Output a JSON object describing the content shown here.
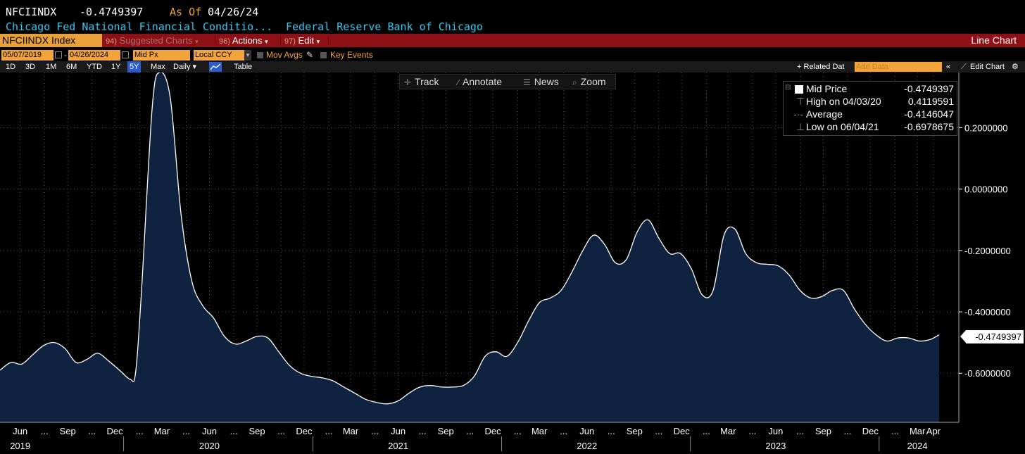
{
  "header": {
    "ticker": "NFCIINDX",
    "value": "-0.4749397",
    "as_of_label": "As Of",
    "as_of_date": "04/26/24",
    "long_name": "Chicago Fed National Financial Conditio...",
    "source": "Federal Reserve Bank of Chicago"
  },
  "redbar": {
    "ticker_tab": "NFCIINDX Index",
    "suggested_num": "94)",
    "suggested": "Suggested Charts",
    "actions_num": "96)",
    "actions": "Actions",
    "edit_num": "97)",
    "edit": "Edit",
    "chart_type": "Line Chart"
  },
  "controls": {
    "start_date": "05/07/2019",
    "end_date": "04/26/2024",
    "price_field": "Mid Px",
    "currency": "Local CCY",
    "mov_avgs": "Mov Avgs",
    "key_events": "Key Events"
  },
  "periods": [
    "1D",
    "3D",
    "1M",
    "6M",
    "YTD",
    "1Y",
    "5Y",
    "Max"
  ],
  "selected_period": "5Y",
  "frequency": "Daily",
  "table_label": "Table",
  "related_data": "Related Dat",
  "add_data_placeholder": "Add Data",
  "edit_chart": "Edit Chart",
  "toolbar": {
    "track": "Track",
    "annotate": "Annotate",
    "news": "News",
    "zoom": "Zoom"
  },
  "legend": {
    "series_name": "Mid Price",
    "series_value": "-0.4749397",
    "high_label": "High on 04/03/20",
    "high_value": "0.4119591",
    "avg_label": "Average",
    "avg_value": "-0.4146047",
    "low_label": "Low on 06/04/21",
    "low_value": "-0.6978675"
  },
  "last_value_label": "-0.4749397",
  "colors": {
    "background": "#000000",
    "area_fill": "#0f2340",
    "line": "#ffffff",
    "red_bar": "#8f1118",
    "accent_orange": "#f2a33a",
    "cyan_text": "#36c6f0",
    "as_of_orange": "#f0a030"
  },
  "chart_data": {
    "type": "area",
    "title": "",
    "xlabel": "",
    "ylabel": "",
    "x_range": [
      "2019-05-07",
      "2024-04-26"
    ],
    "ylim": [
      -0.76,
      0.38
    ],
    "y_ticks": [
      "0.2000000",
      "0.0000000",
      "-0.2000000",
      "-0.4000000",
      "-0.6000000"
    ],
    "y_tick_values": [
      0.2,
      0.0,
      -0.2,
      -0.4,
      -0.6
    ],
    "x_month_labels": [
      "Jun",
      "...",
      "Sep",
      "...",
      "Dec",
      "...",
      "Mar",
      "...",
      "Jun",
      "...",
      "Sep",
      "...",
      "Dec",
      "...",
      "Mar",
      "...",
      "Jun",
      "...",
      "Sep",
      "...",
      "Dec",
      "...",
      "Mar",
      "...",
      "Jun",
      "...",
      "Sep",
      "...",
      "Dec",
      "...",
      "Mar",
      "...",
      "Jun",
      "...",
      "Sep",
      "...",
      "Dec",
      "...",
      "Mar",
      "Apr"
    ],
    "x_month_label_dates": [
      "2019-06-15",
      "2019-08-01",
      "2019-09-15",
      "2019-11-01",
      "2019-12-15",
      "2020-02-01",
      "2020-03-15",
      "2020-05-01",
      "2020-06-15",
      "2020-08-01",
      "2020-09-15",
      "2020-11-01",
      "2020-12-15",
      "2021-02-01",
      "2021-03-15",
      "2021-05-01",
      "2021-06-15",
      "2021-08-01",
      "2021-09-15",
      "2021-11-01",
      "2021-12-15",
      "2022-02-01",
      "2022-03-15",
      "2022-05-01",
      "2022-06-15",
      "2022-08-01",
      "2022-09-15",
      "2022-11-01",
      "2022-12-15",
      "2023-02-01",
      "2023-03-15",
      "2023-05-01",
      "2023-06-15",
      "2023-08-01",
      "2023-09-15",
      "2023-11-01",
      "2023-12-15",
      "2024-02-01",
      "2024-03-15",
      "2024-04-15"
    ],
    "x_year_labels": [
      "2019",
      "2020",
      "2021",
      "2022",
      "2023",
      "2024"
    ],
    "x_year_label_dates": [
      "2019-06-15",
      "2020-06-15",
      "2021-06-15",
      "2022-06-15",
      "2023-06-15",
      "2024-03-15"
    ],
    "x_year_divider_dates": [
      "2020-01-01",
      "2021-01-01",
      "2022-01-01",
      "2023-01-01",
      "2024-01-01"
    ],
    "series": [
      {
        "name": "Mid Price",
        "points": [
          [
            "2019-05-07",
            -0.59
          ],
          [
            "2019-05-28",
            -0.565
          ],
          [
            "2019-06-18",
            -0.57
          ],
          [
            "2019-07-09",
            -0.54
          ],
          [
            "2019-07-30",
            -0.51
          ],
          [
            "2019-08-20",
            -0.5
          ],
          [
            "2019-09-10",
            -0.52
          ],
          [
            "2019-10-01",
            -0.565
          ],
          [
            "2019-10-22",
            -0.555
          ],
          [
            "2019-11-12",
            -0.535
          ],
          [
            "2019-12-03",
            -0.56
          ],
          [
            "2019-12-24",
            -0.59
          ],
          [
            "2020-01-14",
            -0.62
          ],
          [
            "2020-01-24",
            -0.6
          ],
          [
            "2020-02-04",
            -0.35
          ],
          [
            "2020-02-25",
            0.26
          ],
          [
            "2020-03-10",
            0.38
          ],
          [
            "2020-03-31",
            0.3
          ],
          [
            "2020-04-21",
            -0.08
          ],
          [
            "2020-05-12",
            -0.3
          ],
          [
            "2020-06-02",
            -0.38
          ],
          [
            "2020-06-23",
            -0.42
          ],
          [
            "2020-07-14",
            -0.48
          ],
          [
            "2020-08-04",
            -0.505
          ],
          [
            "2020-08-25",
            -0.495
          ],
          [
            "2020-09-15",
            -0.48
          ],
          [
            "2020-10-06",
            -0.485
          ],
          [
            "2020-10-27",
            -0.53
          ],
          [
            "2020-11-17",
            -0.575
          ],
          [
            "2020-12-08",
            -0.6
          ],
          [
            "2020-12-29",
            -0.61
          ],
          [
            "2021-01-19",
            -0.615
          ],
          [
            "2021-02-09",
            -0.625
          ],
          [
            "2021-03-02",
            -0.645
          ],
          [
            "2021-03-23",
            -0.665
          ],
          [
            "2021-04-13",
            -0.685
          ],
          [
            "2021-05-04",
            -0.695
          ],
          [
            "2021-05-25",
            -0.7
          ],
          [
            "2021-06-15",
            -0.69
          ],
          [
            "2021-07-06",
            -0.665
          ],
          [
            "2021-07-27",
            -0.645
          ],
          [
            "2021-08-17",
            -0.64
          ],
          [
            "2021-09-07",
            -0.645
          ],
          [
            "2021-09-28",
            -0.645
          ],
          [
            "2021-10-19",
            -0.64
          ],
          [
            "2021-11-09",
            -0.61
          ],
          [
            "2021-11-30",
            -0.545
          ],
          [
            "2021-12-21",
            -0.53
          ],
          [
            "2022-01-11",
            -0.545
          ],
          [
            "2022-02-01",
            -0.5
          ],
          [
            "2022-02-22",
            -0.43
          ],
          [
            "2022-03-15",
            -0.37
          ],
          [
            "2022-04-05",
            -0.355
          ],
          [
            "2022-04-26",
            -0.33
          ],
          [
            "2022-05-17",
            -0.27
          ],
          [
            "2022-06-07",
            -0.2
          ],
          [
            "2022-06-28",
            -0.15
          ],
          [
            "2022-07-19",
            -0.18
          ],
          [
            "2022-08-09",
            -0.24
          ],
          [
            "2022-08-30",
            -0.23
          ],
          [
            "2022-09-20",
            -0.14
          ],
          [
            "2022-10-11",
            -0.1
          ],
          [
            "2022-11-01",
            -0.16
          ],
          [
            "2022-11-22",
            -0.21
          ],
          [
            "2022-12-13",
            -0.21
          ],
          [
            "2023-01-03",
            -0.26
          ],
          [
            "2023-01-24",
            -0.345
          ],
          [
            "2023-02-14",
            -0.33
          ],
          [
            "2023-03-07",
            -0.15
          ],
          [
            "2023-03-28",
            -0.13
          ],
          [
            "2023-04-18",
            -0.21
          ],
          [
            "2023-05-09",
            -0.24
          ],
          [
            "2023-05-30",
            -0.245
          ],
          [
            "2023-06-20",
            -0.25
          ],
          [
            "2023-07-11",
            -0.28
          ],
          [
            "2023-08-01",
            -0.33
          ],
          [
            "2023-08-22",
            -0.355
          ],
          [
            "2023-09-12",
            -0.35
          ],
          [
            "2023-10-03",
            -0.33
          ],
          [
            "2023-10-24",
            -0.33
          ],
          [
            "2023-11-14",
            -0.39
          ],
          [
            "2023-12-05",
            -0.44
          ],
          [
            "2023-12-26",
            -0.475
          ],
          [
            "2024-01-16",
            -0.495
          ],
          [
            "2024-02-06",
            -0.485
          ],
          [
            "2024-02-27",
            -0.485
          ],
          [
            "2024-03-19",
            -0.495
          ],
          [
            "2024-04-09",
            -0.49
          ],
          [
            "2024-04-26",
            -0.4749397
          ]
        ]
      }
    ]
  }
}
